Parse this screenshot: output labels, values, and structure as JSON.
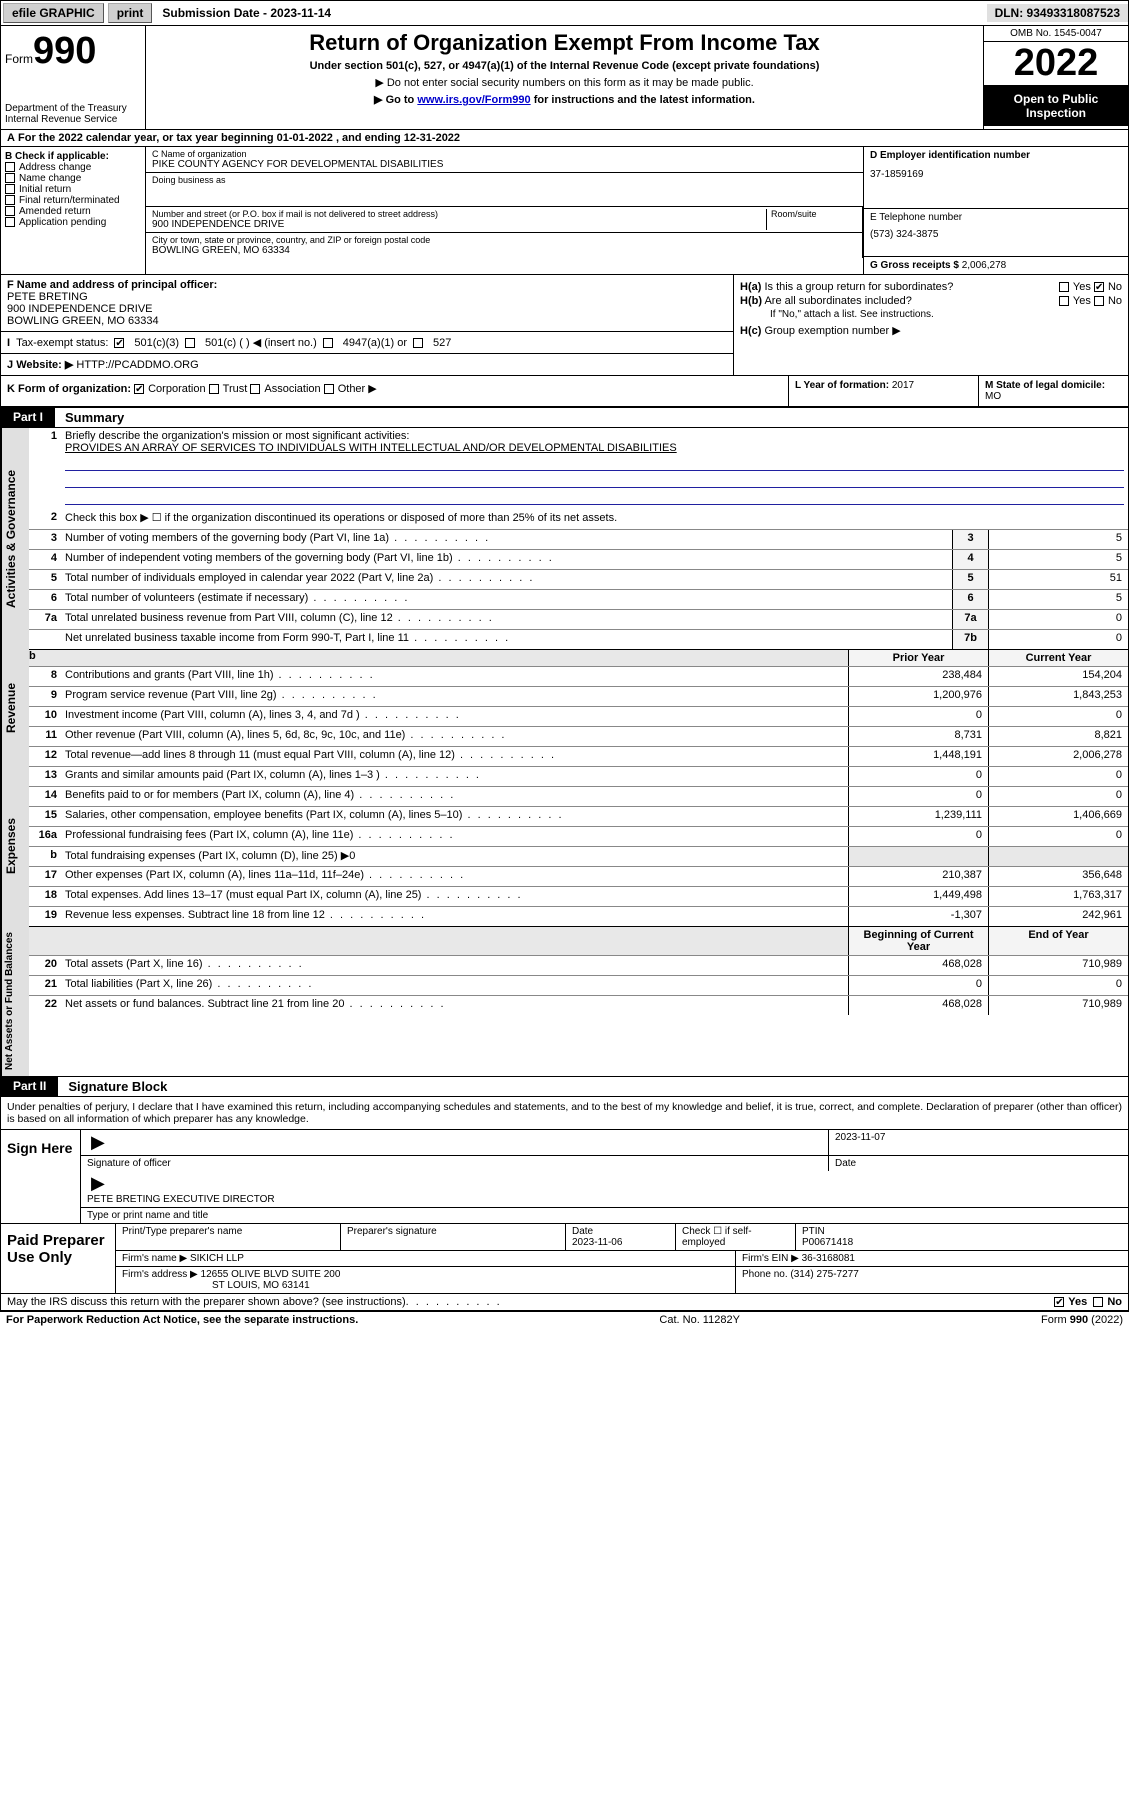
{
  "topbar": {
    "efile": "efile GRAPHIC",
    "print": "print",
    "submission": "Submission Date - 2023-11-14",
    "dln": "DLN: 93493318087523"
  },
  "header": {
    "form_label": "Form",
    "form_num": "990",
    "dept": "Department of the Treasury",
    "irs": "Internal Revenue Service",
    "title": "Return of Organization Exempt From Income Tax",
    "subtitle": "Under section 501(c), 527, or 4947(a)(1) of the Internal Revenue Code (except private foundations)",
    "note1": "▶ Do not enter social security numbers on this form as it may be made public.",
    "note2_pre": "▶ Go to ",
    "note2_link": "www.irs.gov/Form990",
    "note2_post": " for instructions and the latest information.",
    "omb": "OMB No. 1545-0047",
    "year": "2022",
    "open": "Open to Public Inspection"
  },
  "A": {
    "text": "For the 2022 calendar year, or tax year beginning 01-01-2022   , and ending 12-31-2022"
  },
  "B": {
    "label": "B Check if applicable:",
    "opts": [
      "Address change",
      "Name change",
      "Initial return",
      "Final return/terminated",
      "Amended return",
      "Application pending"
    ]
  },
  "C": {
    "name_label": "C Name of organization",
    "name": "PIKE COUNTY AGENCY FOR DEVELOPMENTAL DISABILITIES",
    "dba_label": "Doing business as",
    "street_label": "Number and street (or P.O. box if mail is not delivered to street address)",
    "room_label": "Room/suite",
    "street": "900 INDEPENDENCE DRIVE",
    "city_label": "City or town, state or province, country, and ZIP or foreign postal code",
    "city": "BOWLING GREEN, MO  63334"
  },
  "D": {
    "label": "D Employer identification number",
    "value": "37-1859169"
  },
  "E": {
    "label": "E Telephone number",
    "value": "(573) 324-3875"
  },
  "G": {
    "label": "G Gross receipts $",
    "value": "2,006,278"
  },
  "F": {
    "label": "F Name and address of principal officer:",
    "name": "PETE BRETING",
    "addr1": "900 INDEPENDENCE DRIVE",
    "addr2": "BOWLING GREEN, MO  63334"
  },
  "I": {
    "label": "Tax-exempt status:",
    "opt1": "501(c)(3)",
    "opt2": "501(c) (  ) ◀ (insert no.)",
    "opt3": "4947(a)(1) or",
    "opt4": "527"
  },
  "J": {
    "label": "Website: ▶",
    "value": "HTTP://PCADDMO.ORG"
  },
  "H": {
    "a": "Is this a group return for subordinates?",
    "b": "Are all subordinates included?",
    "note": "If \"No,\" attach a list. See instructions.",
    "c": "Group exemption number ▶",
    "yes": "Yes",
    "no": "No"
  },
  "K": {
    "label": "K Form of organization:",
    "opts": [
      "Corporation",
      "Trust",
      "Association",
      "Other ▶"
    ]
  },
  "L": {
    "label": "L Year of formation:",
    "value": "2017"
  },
  "M": {
    "label": "M State of legal domicile:",
    "value": "MO"
  },
  "part1": {
    "header": "Part I",
    "title": "Summary",
    "q1": "Briefly describe the organization's mission or most significant activities:",
    "mission": "PROVIDES AN ARRAY OF SERVICES TO INDIVIDUALS WITH INTELLECTUAL AND/OR DEVELOPMENTAL DISABILITIES",
    "q2": "Check this box ▶ ☐  if the organization discontinued its operations or disposed of more than 25% of its net assets.",
    "lines_gov": [
      {
        "n": "3",
        "t": "Number of voting members of the governing body (Part VI, line 1a)",
        "box": "3",
        "v": "5"
      },
      {
        "n": "4",
        "t": "Number of independent voting members of the governing body (Part VI, line 1b)",
        "box": "4",
        "v": "5"
      },
      {
        "n": "5",
        "t": "Total number of individuals employed in calendar year 2022 (Part V, line 2a)",
        "box": "5",
        "v": "51"
      },
      {
        "n": "6",
        "t": "Total number of volunteers (estimate if necessary)",
        "box": "6",
        "v": "5"
      },
      {
        "n": "7a",
        "t": "Total unrelated business revenue from Part VIII, column (C), line 12",
        "box": "7a",
        "v": "0"
      },
      {
        "n": "",
        "t": "Net unrelated business taxable income from Form 990-T, Part I, line 11",
        "box": "7b",
        "v": "0"
      }
    ],
    "py_label": "Prior Year",
    "cy_label": "Current Year",
    "lines_rev": [
      {
        "n": "8",
        "t": "Contributions and grants (Part VIII, line 1h)",
        "py": "238,484",
        "cy": "154,204"
      },
      {
        "n": "9",
        "t": "Program service revenue (Part VIII, line 2g)",
        "py": "1,200,976",
        "cy": "1,843,253"
      },
      {
        "n": "10",
        "t": "Investment income (Part VIII, column (A), lines 3, 4, and 7d )",
        "py": "0",
        "cy": "0"
      },
      {
        "n": "11",
        "t": "Other revenue (Part VIII, column (A), lines 5, 6d, 8c, 9c, 10c, and 11e)",
        "py": "8,731",
        "cy": "8,821"
      },
      {
        "n": "12",
        "t": "Total revenue—add lines 8 through 11 (must equal Part VIII, column (A), line 12)",
        "py": "1,448,191",
        "cy": "2,006,278"
      }
    ],
    "lines_exp": [
      {
        "n": "13",
        "t": "Grants and similar amounts paid (Part IX, column (A), lines 1–3 )",
        "py": "0",
        "cy": "0"
      },
      {
        "n": "14",
        "t": "Benefits paid to or for members (Part IX, column (A), line 4)",
        "py": "0",
        "cy": "0"
      },
      {
        "n": "15",
        "t": "Salaries, other compensation, employee benefits (Part IX, column (A), lines 5–10)",
        "py": "1,239,111",
        "cy": "1,406,669"
      },
      {
        "n": "16a",
        "t": "Professional fundraising fees (Part IX, column (A), line 11e)",
        "py": "0",
        "cy": "0"
      },
      {
        "n": "b",
        "t": "Total fundraising expenses (Part IX, column (D), line 25) ▶0",
        "py": "",
        "cy": "",
        "gray": true
      },
      {
        "n": "17",
        "t": "Other expenses (Part IX, column (A), lines 11a–11d, 11f–24e)",
        "py": "210,387",
        "cy": "356,648"
      },
      {
        "n": "18",
        "t": "Total expenses. Add lines 13–17 (must equal Part IX, column (A), line 25)",
        "py": "1,449,498",
        "cy": "1,763,317"
      },
      {
        "n": "19",
        "t": "Revenue less expenses. Subtract line 18 from line 12",
        "py": "-1,307",
        "cy": "242,961"
      }
    ],
    "bcy_label": "Beginning of Current Year",
    "eoy_label": "End of Year",
    "lines_net": [
      {
        "n": "20",
        "t": "Total assets (Part X, line 16)",
        "py": "468,028",
        "cy": "710,989"
      },
      {
        "n": "21",
        "t": "Total liabilities (Part X, line 26)",
        "py": "0",
        "cy": "0"
      },
      {
        "n": "22",
        "t": "Net assets or fund balances. Subtract line 21 from line 20",
        "py": "468,028",
        "cy": "710,989"
      }
    ]
  },
  "part2": {
    "header": "Part II",
    "title": "Signature Block",
    "declaration": "Under penalties of perjury, I declare that I have examined this return, including accompanying schedules and statements, and to the best of my knowledge and belief, it is true, correct, and complete. Declaration of preparer (other than officer) is based on all information of which preparer has any knowledge.",
    "sign_here": "Sign Here",
    "sig_officer": "Signature of officer",
    "sig_date_label": "Date",
    "sig_date": "2023-11-07",
    "officer_name": "PETE BRETING  EXECUTIVE DIRECTOR",
    "type_name": "Type or print name and title",
    "paid": "Paid Preparer Use Only",
    "p_name_label": "Print/Type preparer's name",
    "p_sig_label": "Preparer's signature",
    "p_date_label": "Date",
    "p_date": "2023-11-06",
    "p_check": "Check ☐ if self-employed",
    "ptin_label": "PTIN",
    "ptin": "P00671418",
    "firm_name_label": "Firm's name   ▶",
    "firm_name": "SIKICH LLP",
    "firm_ein_label": "Firm's EIN ▶",
    "firm_ein": "36-3168081",
    "firm_addr_label": "Firm's address ▶",
    "firm_addr1": "12655 OLIVE BLVD SUITE 200",
    "firm_addr2": "ST LOUIS, MO  63141",
    "phone_label": "Phone no.",
    "phone": "(314) 275-7277",
    "discuss": "May the IRS discuss this return with the preparer shown above? (see instructions)",
    "yes": "Yes",
    "no": "No"
  },
  "footer": {
    "pra": "For Paperwork Reduction Act Notice, see the separate instructions.",
    "cat": "Cat. No. 11282Y",
    "form": "Form 990 (2022)"
  },
  "side": {
    "gov": "Activities & Governance",
    "rev": "Revenue",
    "exp": "Expenses",
    "net": "Net Assets or Fund Balances"
  }
}
